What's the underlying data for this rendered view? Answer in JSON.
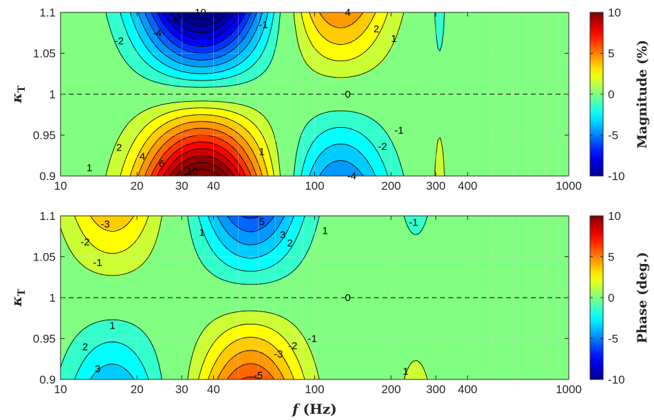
{
  "colors": {
    "jet": [
      "#00008f",
      "#0000ff",
      "#0080ff",
      "#00ffff",
      "#80ff80",
      "#ffff00",
      "#ff8000",
      "#ff0000",
      "#800000"
    ],
    "contour_line": "#000000",
    "grid": "#dcdcdc",
    "axis": "#262626"
  },
  "chart_data": [
    {
      "type": "heatmap",
      "panel": "top",
      "title": "",
      "xlabel": "",
      "ylabel": "κT",
      "x_scale": "log",
      "xlim": [
        10,
        1000
      ],
      "ylim": [
        0.9,
        1.1
      ],
      "x_ticks": [
        10,
        20,
        30,
        40,
        100,
        200,
        300,
        400,
        1000
      ],
      "x_tick_labels": [
        "10",
        "20",
        "30",
        "40",
        "100",
        "200",
        "300",
        "400",
        "1000"
      ],
      "y_ticks": [
        0.9,
        0.95,
        1.0,
        1.05,
        1.1
      ],
      "y_tick_labels": [
        "0.9",
        "0.95",
        "1",
        "1.05",
        "1.1"
      ],
      "grid": true,
      "dashed_reference_y": 1.0,
      "colorbar": {
        "label": "Magnitude (%)",
        "range": [
          -10,
          10
        ],
        "ticks": [
          10,
          5,
          0,
          -5,
          -10
        ],
        "tick_labels": [
          "10",
          "5",
          "0",
          "-5",
          "-10"
        ]
      },
      "lobes": [
        {
          "center_f": 36,
          "width_decades": 0.24,
          "amplitude_per_unit_dk": -120,
          "peak_at_y_1.1": -12
        },
        {
          "center_f": 125,
          "width_decades": 0.2,
          "amplitude_per_unit_dk": 50,
          "peak_at_y_1.1": 5
        },
        {
          "center_f": 310,
          "width_decades": 0.025,
          "amplitude_per_unit_dk": -20,
          "peak_at_y_1.1": -2
        }
      ],
      "contour_labels": [
        {
          "text": "-10",
          "f": 35,
          "y": 1.1
        },
        {
          "text": "-6",
          "f": 28,
          "y": 1.09
        },
        {
          "text": "-4",
          "f": 24,
          "y": 1.075
        },
        {
          "text": "-2",
          "f": 17,
          "y": 1.065
        },
        {
          "text": "-1",
          "f": 63,
          "y": 1.085
        },
        {
          "text": "4",
          "f": 135,
          "y": 1.1
        },
        {
          "text": "2",
          "f": 175,
          "y": 1.08
        },
        {
          "text": "1",
          "f": 205,
          "y": 1.068
        },
        {
          "text": "0",
          "f": 135,
          "y": 1.0
        },
        {
          "text": "1",
          "f": 13,
          "y": 0.91
        },
        {
          "text": "2",
          "f": 17,
          "y": 0.935
        },
        {
          "text": "4",
          "f": 21,
          "y": 0.924
        },
        {
          "text": "6",
          "f": 25,
          "y": 0.915
        },
        {
          "text": "10",
          "f": 33,
          "y": 0.906
        },
        {
          "text": "1",
          "f": 62,
          "y": 0.93
        },
        {
          "text": "-1",
          "f": 215,
          "y": 0.956
        },
        {
          "text": "-2",
          "f": 185,
          "y": 0.936
        },
        {
          "text": "-4",
          "f": 140,
          "y": 0.9
        }
      ]
    },
    {
      "type": "heatmap",
      "panel": "bottom",
      "title": "",
      "xlabel": "f (Hz)",
      "ylabel": "κT",
      "x_scale": "log",
      "xlim": [
        10,
        1000
      ],
      "ylim": [
        0.9,
        1.1
      ],
      "x_ticks": [
        10,
        20,
        30,
        40,
        100,
        200,
        300,
        400,
        1000
      ],
      "x_tick_labels": [
        "10",
        "20",
        "30",
        "40",
        "100",
        "200",
        "300",
        "400",
        "1000"
      ],
      "y_ticks": [
        0.9,
        0.95,
        1.0,
        1.05,
        1.1
      ],
      "y_tick_labels": [
        "0.9",
        "0.95",
        "1",
        "1.05",
        "1.1"
      ],
      "grid": true,
      "dashed_reference_y": 1.0,
      "colorbar": {
        "label": "Phase (deg.)",
        "range": [
          -10,
          10
        ],
        "ticks": [
          10,
          5,
          0,
          -5,
          -10
        ],
        "tick_labels": [
          "10",
          "5",
          "0",
          "-5",
          "-10"
        ]
      },
      "lobes": [
        {
          "center_f": 16,
          "width_decades": 0.19,
          "amplitude_per_unit_dk": 37,
          "peak_at_y_1.1": 3.7
        },
        {
          "center_f": 56,
          "width_decades": 0.2,
          "amplitude_per_unit_dk": -62,
          "peak_at_y_1.1": -6.2
        },
        {
          "center_f": 250,
          "width_decades": 0.09,
          "amplitude_per_unit_dk": -13,
          "peak_at_y_1.1": -1.3
        }
      ],
      "contour_labels": [
        {
          "text": "-3",
          "f": 15,
          "y": 1.09
        },
        {
          "text": "-2",
          "f": 12.5,
          "y": 1.068
        },
        {
          "text": "-1",
          "f": 14,
          "y": 1.043
        },
        {
          "text": "1",
          "f": 36,
          "y": 1.08
        },
        {
          "text": "5",
          "f": 62,
          "y": 1.093
        },
        {
          "text": "3",
          "f": 75,
          "y": 1.077
        },
        {
          "text": "2",
          "f": 80,
          "y": 1.067
        },
        {
          "text": "1",
          "f": 110,
          "y": 1.082
        },
        {
          "text": "-1",
          "f": 245,
          "y": 1.092
        },
        {
          "text": "0",
          "f": 135,
          "y": 1.0
        },
        {
          "text": "1",
          "f": 16,
          "y": 0.966
        },
        {
          "text": "2",
          "f": 12.5,
          "y": 0.94
        },
        {
          "text": "3",
          "f": 14,
          "y": 0.913
        },
        {
          "text": "-1",
          "f": 98,
          "y": 0.95
        },
        {
          "text": "-2",
          "f": 82,
          "y": 0.941
        },
        {
          "text": "-3",
          "f": 72,
          "y": 0.931
        },
        {
          "text": "-5",
          "f": 60,
          "y": 0.905
        },
        {
          "text": "1",
          "f": 228,
          "y": 0.91
        }
      ]
    }
  ]
}
